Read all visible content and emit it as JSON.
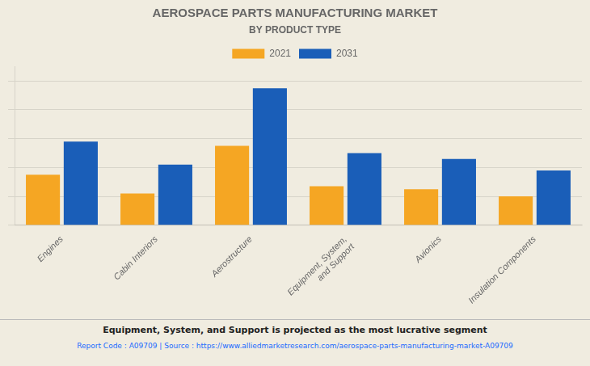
{
  "chart_data": {
    "type": "bar",
    "title": "AEROSPACE PARTS MANUFACTURING MARKET",
    "subtitle": "BY PRODUCT TYPE",
    "categories": [
      "Engines",
      "Cabin Interiors",
      "Aerostructure",
      "Equipment, System,\nand Support",
      "Avionics",
      "Insulation Components"
    ],
    "series": [
      {
        "name": "2021",
        "color": "#f5a623",
        "values": [
          35,
          22,
          55,
          27,
          25,
          20
        ]
      },
      {
        "name": "2031",
        "color": "#1a5eb8",
        "values": [
          58,
          42,
          95,
          50,
          46,
          38
        ]
      }
    ],
    "ylim": [
      0,
      110
    ],
    "yticks": [
      0,
      20,
      40,
      60,
      80,
      100
    ],
    "grid": true,
    "legend": "top",
    "tick_labels": "x",
    "annotations": [
      "Equipment, System, and Support is projected as the most lucrative segment",
      "Report Code : A09709  |  Source : https://www.alliedmarketresearch.com/aerospace-parts-manufacturing-market-A09709"
    ]
  }
}
